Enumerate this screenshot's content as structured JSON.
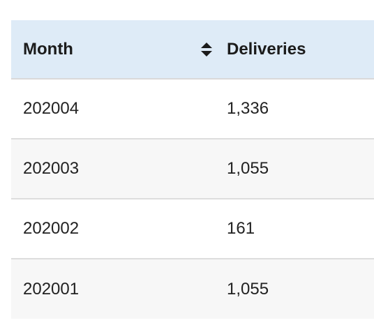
{
  "table": {
    "columns": [
      {
        "label": "Month",
        "sortable": true,
        "sort_icon": "sort-updown-icon"
      },
      {
        "label": "Deliveries"
      }
    ],
    "rows": [
      {
        "month": "202004",
        "deliveries": "1,336"
      },
      {
        "month": "202003",
        "deliveries": "1,055"
      },
      {
        "month": "202002",
        "deliveries": "161"
      },
      {
        "month": "202001",
        "deliveries": "1,055"
      }
    ]
  },
  "colors": {
    "header_bg": "#deebf7",
    "alt_row_bg": "#f7f7f7",
    "row_border": "#dddddd"
  }
}
